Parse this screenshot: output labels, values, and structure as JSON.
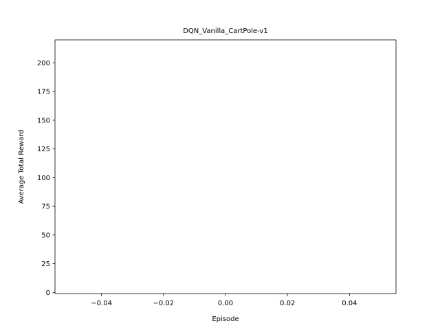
{
  "chart_data": {
    "type": "line",
    "title": "DQN_Vanilla_CartPole-v1",
    "xlabel": "Episode",
    "ylabel": "Average Total Reward",
    "xlim": [
      -0.055,
      0.055
    ],
    "ylim": [
      -1,
      220
    ],
    "xticks": [
      -0.04,
      -0.02,
      0.0,
      0.02,
      0.04
    ],
    "xtick_labels": [
      "−0.04",
      "−0.02",
      "0.00",
      "0.02",
      "0.04"
    ],
    "yticks": [
      0,
      25,
      50,
      75,
      100,
      125,
      150,
      175,
      200
    ],
    "ytick_labels": [
      "0",
      "25",
      "50",
      "75",
      "100",
      "125",
      "150",
      "175",
      "200"
    ],
    "grid": false,
    "series": [
      {
        "x": [],
        "y": [],
        "color": "#1f77b4"
      }
    ]
  }
}
